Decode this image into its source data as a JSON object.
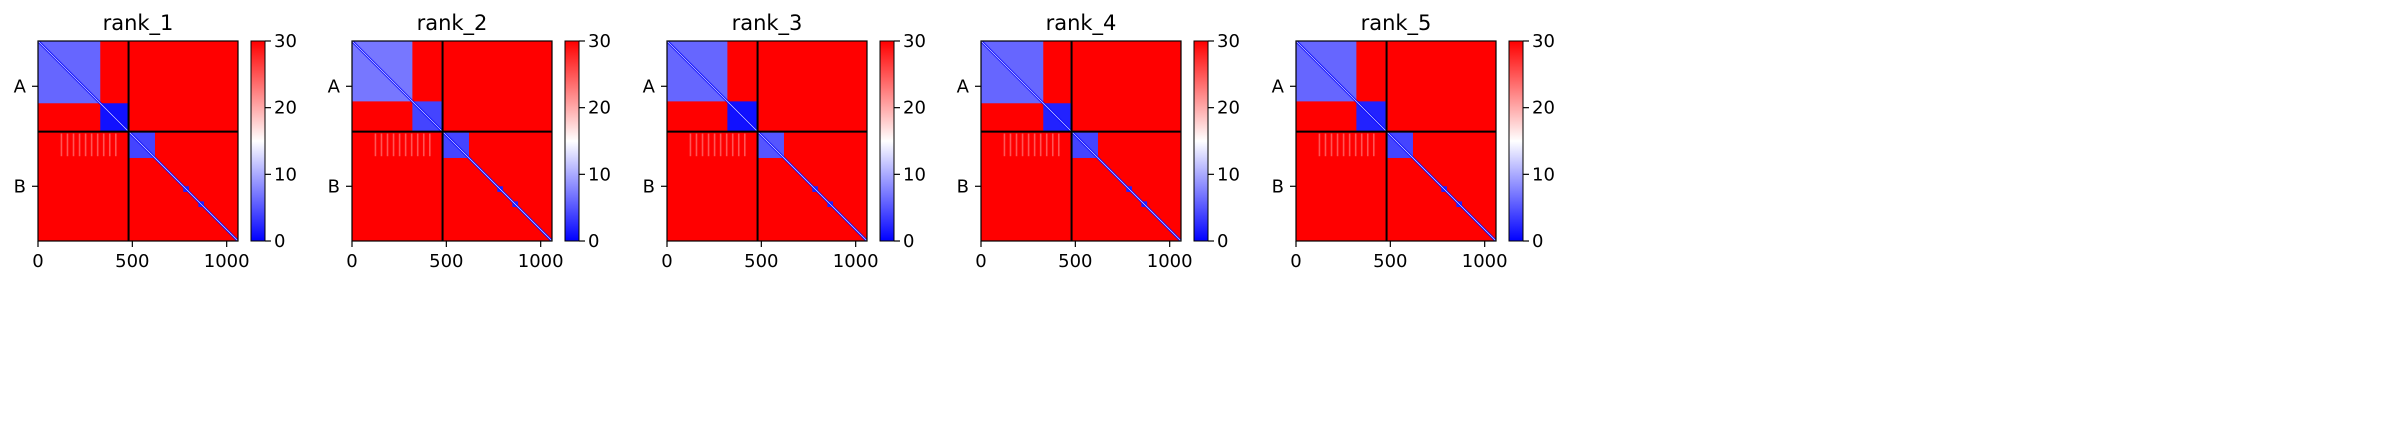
{
  "chart_data": [
    {
      "type": "heatmap",
      "title": "rank_1",
      "chains": [
        "A",
        "B"
      ],
      "chain_boundary": 480,
      "n_residues": 1060,
      "x_ticks": [
        0,
        500,
        1000
      ],
      "x_tick_labels": [
        "0",
        "500",
        "1000"
      ],
      "y_tick_labels": [
        "A",
        "B"
      ],
      "colorbar": {
        "min": 0,
        "max": 30,
        "ticks": [
          0,
          10,
          20,
          30
        ],
        "tick_labels": [
          "0",
          "10",
          "20",
          "30"
        ],
        "colors": [
          "#0000ff",
          "#ffffff",
          "#ff0000"
        ]
      },
      "intra_domain_A": [
        [
          0,
          330,
          6
        ],
        [
          330,
          480,
          1
        ]
      ],
      "intra_domain_B": [
        [
          480,
          620,
          4
        ],
        [
          770,
          800,
          2
        ],
        [
          850,
          880,
          2
        ]
      ]
    },
    {
      "type": "heatmap",
      "title": "rank_2",
      "chains": [
        "A",
        "B"
      ],
      "chain_boundary": 480,
      "n_residues": 1060,
      "x_ticks": [
        0,
        500,
        1000
      ],
      "x_tick_labels": [
        "0",
        "500",
        "1000"
      ],
      "y_tick_labels": [
        "A",
        "B"
      ],
      "colorbar": {
        "min": 0,
        "max": 30,
        "ticks": [
          0,
          10,
          20,
          30
        ],
        "tick_labels": [
          "0",
          "10",
          "20",
          "30"
        ],
        "colors": [
          "#0000ff",
          "#ffffff",
          "#ff0000"
        ]
      },
      "intra_domain_A": [
        [
          0,
          320,
          7
        ],
        [
          320,
          480,
          4
        ]
      ],
      "intra_domain_B": [
        [
          480,
          620,
          4
        ],
        [
          770,
          800,
          2
        ],
        [
          850,
          880,
          2
        ]
      ]
    },
    {
      "type": "heatmap",
      "title": "rank_3",
      "chains": [
        "A",
        "B"
      ],
      "chain_boundary": 480,
      "n_residues": 1060,
      "x_ticks": [
        0,
        500,
        1000
      ],
      "x_tick_labels": [
        "0",
        "500",
        "1000"
      ],
      "y_tick_labels": [
        "A",
        "B"
      ],
      "colorbar": {
        "min": 0,
        "max": 30,
        "ticks": [
          0,
          10,
          20,
          30
        ],
        "tick_labels": [
          "0",
          "10",
          "20",
          "30"
        ],
        "colors": [
          "#0000ff",
          "#ffffff",
          "#ff0000"
        ]
      },
      "intra_domain_A": [
        [
          0,
          320,
          6
        ],
        [
          320,
          480,
          1
        ]
      ],
      "intra_domain_B": [
        [
          480,
          620,
          5
        ],
        [
          770,
          800,
          2
        ],
        [
          850,
          880,
          2
        ]
      ]
    },
    {
      "type": "heatmap",
      "title": "rank_4",
      "chains": [
        "A",
        "B"
      ],
      "chain_boundary": 480,
      "n_residues": 1060,
      "x_ticks": [
        0,
        500,
        1000
      ],
      "x_tick_labels": [
        "0",
        "500",
        "1000"
      ],
      "y_tick_labels": [
        "A",
        "B"
      ],
      "colorbar": {
        "min": 0,
        "max": 30,
        "ticks": [
          0,
          10,
          20,
          30
        ],
        "tick_labels": [
          "0",
          "10",
          "20",
          "30"
        ],
        "colors": [
          "#0000ff",
          "#ffffff",
          "#ff0000"
        ]
      },
      "intra_domain_A": [
        [
          0,
          330,
          6
        ],
        [
          330,
          480,
          2
        ]
      ],
      "intra_domain_B": [
        [
          480,
          620,
          4
        ],
        [
          770,
          800,
          2
        ],
        [
          850,
          880,
          2
        ]
      ]
    },
    {
      "type": "heatmap",
      "title": "rank_5",
      "chains": [
        "A",
        "B"
      ],
      "chain_boundary": 480,
      "n_residues": 1060,
      "x_ticks": [
        0,
        500,
        1000
      ],
      "x_tick_labels": [
        "0",
        "500",
        "1000"
      ],
      "y_tick_labels": [
        "A",
        "B"
      ],
      "colorbar": {
        "min": 0,
        "max": 30,
        "ticks": [
          0,
          10,
          20,
          30
        ],
        "tick_labels": [
          "0",
          "10",
          "20",
          "30"
        ],
        "colors": [
          "#0000ff",
          "#ffffff",
          "#ff0000"
        ]
      },
      "intra_domain_A": [
        [
          0,
          320,
          6
        ],
        [
          320,
          480,
          2
        ]
      ],
      "intra_domain_B": [
        [
          480,
          620,
          4
        ],
        [
          770,
          800,
          2
        ],
        [
          850,
          880,
          2
        ]
      ]
    }
  ],
  "colors": {
    "low": "#0000ff",
    "mid": "#ffffff",
    "high": "#ff0000",
    "divider": "#000000"
  }
}
